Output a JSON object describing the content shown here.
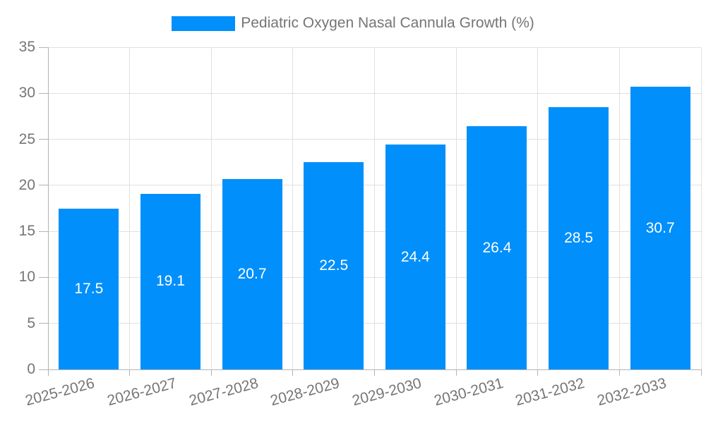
{
  "legend": {
    "label": "Pediatric Oxygen Nasal Cannula Growth (%)"
  },
  "colors": {
    "bar": "#008FFB",
    "axis_text": "#757575",
    "value_text": "#FFFFFF",
    "gridline": "#E0E0E0",
    "axis_line": "#B3B3B3",
    "background": "#FFFFFF"
  },
  "chart_data": {
    "type": "bar",
    "title": "Pediatric Oxygen Nasal Cannula Growth (%)",
    "categories": [
      "2025-2026",
      "2026-2027",
      "2027-2028",
      "2028-2029",
      "2029-2030",
      "2030-2031",
      "2031-2032",
      "2032-2033"
    ],
    "values": [
      17.5,
      19.1,
      20.7,
      22.5,
      24.4,
      26.4,
      28.5,
      30.7
    ],
    "value_labels": [
      "17.5",
      "19.1",
      "20.7",
      "22.5",
      "24.4",
      "26.4",
      "28.5",
      "30.7"
    ],
    "xlabel": "",
    "ylabel": "",
    "ylim": [
      0,
      35
    ],
    "yticks": [
      0,
      5,
      10,
      15,
      20,
      25,
      30,
      35
    ],
    "grid": true,
    "legend_position": "top",
    "value_labels_inside": true,
    "x_label_rotation_deg": -15
  }
}
